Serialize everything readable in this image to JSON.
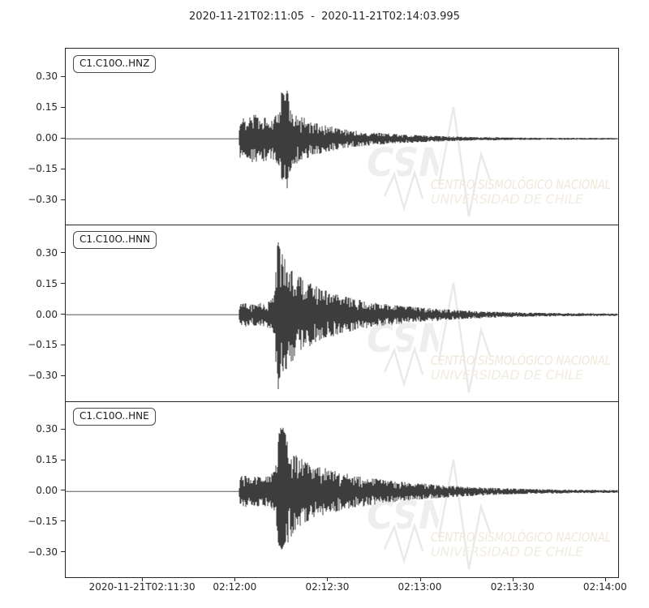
{
  "figure": {
    "colors": {
      "background": "#ffffff",
      "trace": "#3d3d3d",
      "axis": "#262626",
      "tick_label": "#262626",
      "label_box_border": "#4a4a4a"
    },
    "watermark": {
      "brand": "CSN",
      "line1": "CENTRO SISMOLÓGICO NACIONAL",
      "line2": "UNIVERSIDAD DE CHILE",
      "brand_color": "#eeeeee",
      "wave_color": "#e9e9e9",
      "halo_color": "#ffffff",
      "line1_color": "#efe8da",
      "line2_color": "#f1ece2"
    }
  },
  "chart_data": {
    "type": "line",
    "title": "2020-11-21T02:11:05  -  2020-11-21T02:14:03.995",
    "xlabel": "",
    "ylabel": "",
    "grid": false,
    "duration_s": 178.995,
    "start_time": "2020-11-21T02:11:05",
    "end_time": "2020-11-21T02:14:03.995",
    "ylim": [
      -0.42,
      0.44
    ],
    "y_ticks": [
      {
        "v": 0.3,
        "label": "0.30"
      },
      {
        "v": 0.15,
        "label": "0.15"
      },
      {
        "v": 0.0,
        "label": "0.00"
      },
      {
        "v": -0.15,
        "label": "−0.15"
      },
      {
        "v": -0.3,
        "label": "−0.30"
      }
    ],
    "x_ticks": [
      {
        "s": 25,
        "label": "2020-11-21T02:11:30"
      },
      {
        "s": 55,
        "label": "02:12:00"
      },
      {
        "s": 85,
        "label": "02:12:30"
      },
      {
        "s": 115,
        "label": "02:13:00"
      },
      {
        "s": 145,
        "label": "02:13:30"
      },
      {
        "s": 175,
        "label": "02:14:00"
      }
    ],
    "traces": [
      {
        "label": "C1.C10O..HNZ",
        "seed": 48271,
        "peak_amplitude": 0.25,
        "onset_s": 56.5,
        "envelope": [
          [
            0,
            0.0015
          ],
          [
            56.2,
            0.0015
          ],
          [
            56.6,
            0.1
          ],
          [
            57.5,
            0.12
          ],
          [
            58.5,
            0.09
          ],
          [
            60,
            0.11
          ],
          [
            61.5,
            0.13
          ],
          [
            63,
            0.09
          ],
          [
            64.5,
            0.12
          ],
          [
            66,
            0.09
          ],
          [
            67.5,
            0.11
          ],
          [
            69,
            0.13
          ],
          [
            70.2,
            0.24
          ],
          [
            71.2,
            0.2
          ],
          [
            71.9,
            0.25
          ],
          [
            72.8,
            0.16
          ],
          [
            74,
            0.13
          ],
          [
            76,
            0.11
          ],
          [
            78,
            0.1
          ],
          [
            81,
            0.08
          ],
          [
            85,
            0.065
          ],
          [
            89,
            0.05
          ],
          [
            94,
            0.04
          ],
          [
            100,
            0.032
          ],
          [
            107,
            0.024
          ],
          [
            114,
            0.018
          ],
          [
            122,
            0.013
          ],
          [
            132,
            0.009
          ],
          [
            145,
            0.006
          ],
          [
            160,
            0.005
          ],
          [
            178.995,
            0.004
          ]
        ]
      },
      {
        "label": "C1.C10O..HNN",
        "seed": 91117,
        "peak_amplitude": 0.38,
        "onset_s": 56.5,
        "envelope": [
          [
            0,
            0.0015
          ],
          [
            56.2,
            0.0015
          ],
          [
            56.6,
            0.055
          ],
          [
            58,
            0.06
          ],
          [
            60,
            0.05
          ],
          [
            62,
            0.06
          ],
          [
            64,
            0.055
          ],
          [
            66,
            0.07
          ],
          [
            67.6,
            0.1
          ],
          [
            68.4,
            0.3
          ],
          [
            69.1,
            0.38
          ],
          [
            69.8,
            0.32
          ],
          [
            70.8,
            0.28
          ],
          [
            72,
            0.26
          ],
          [
            73.5,
            0.23
          ],
          [
            75,
            0.2
          ],
          [
            77,
            0.175
          ],
          [
            79.5,
            0.155
          ],
          [
            82,
            0.135
          ],
          [
            85,
            0.115
          ],
          [
            88,
            0.1
          ],
          [
            92,
            0.085
          ],
          [
            96,
            0.07
          ],
          [
            101,
            0.058
          ],
          [
            107,
            0.047
          ],
          [
            113,
            0.038
          ],
          [
            120,
            0.03
          ],
          [
            128,
            0.022
          ],
          [
            137,
            0.016
          ],
          [
            148,
            0.011
          ],
          [
            162,
            0.008
          ],
          [
            178.995,
            0.006
          ]
        ]
      },
      {
        "label": "C1.C10O..HNE",
        "seed": 26339,
        "peak_amplitude": 0.335,
        "onset_s": 56.5,
        "envelope": [
          [
            0,
            0.0015
          ],
          [
            56.2,
            0.0015
          ],
          [
            56.6,
            0.075
          ],
          [
            58,
            0.08
          ],
          [
            60,
            0.07
          ],
          [
            62,
            0.075
          ],
          [
            64,
            0.07
          ],
          [
            66,
            0.08
          ],
          [
            68,
            0.1
          ],
          [
            69.3,
            0.3
          ],
          [
            70.1,
            0.335
          ],
          [
            71,
            0.3
          ],
          [
            72.3,
            0.26
          ],
          [
            73.8,
            0.21
          ],
          [
            75.5,
            0.175
          ],
          [
            78,
            0.15
          ],
          [
            81,
            0.13
          ],
          [
            84,
            0.115
          ],
          [
            88,
            0.1
          ],
          [
            92,
            0.088
          ],
          [
            97,
            0.073
          ],
          [
            102,
            0.06
          ],
          [
            108,
            0.05
          ],
          [
            115,
            0.04
          ],
          [
            122,
            0.032
          ],
          [
            130,
            0.024
          ],
          [
            140,
            0.017
          ],
          [
            152,
            0.012
          ],
          [
            165,
            0.009
          ],
          [
            178.995,
            0.007
          ]
        ]
      }
    ]
  }
}
